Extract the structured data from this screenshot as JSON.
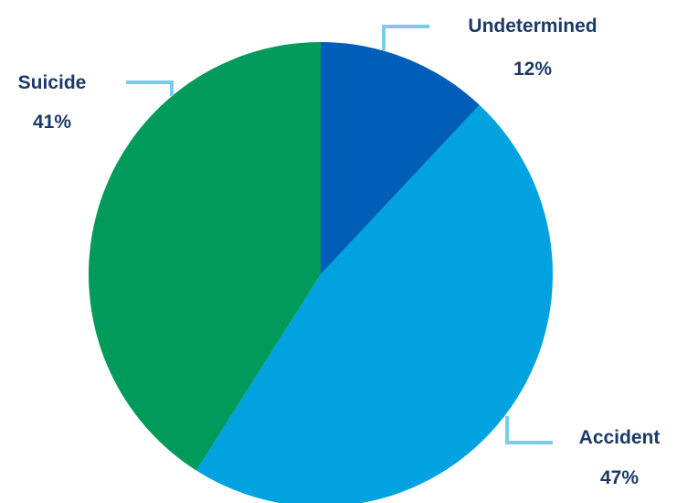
{
  "chart_data": {
    "type": "pie",
    "title": "",
    "slices": [
      {
        "label": "Undetermined",
        "value": 12,
        "value_label": "12%",
        "color": "#005eb8"
      },
      {
        "label": "Accident",
        "value": 47,
        "value_label": "47%",
        "color": "#00a3e0"
      },
      {
        "label": "Suicide",
        "value": 41,
        "value_label": "41%",
        "color": "#009a5a"
      }
    ],
    "start": "12 o'clock",
    "direction": "clockwise",
    "legend": "none",
    "leader_line_color": "#7dcbea",
    "label_color": "#1b3a66"
  }
}
